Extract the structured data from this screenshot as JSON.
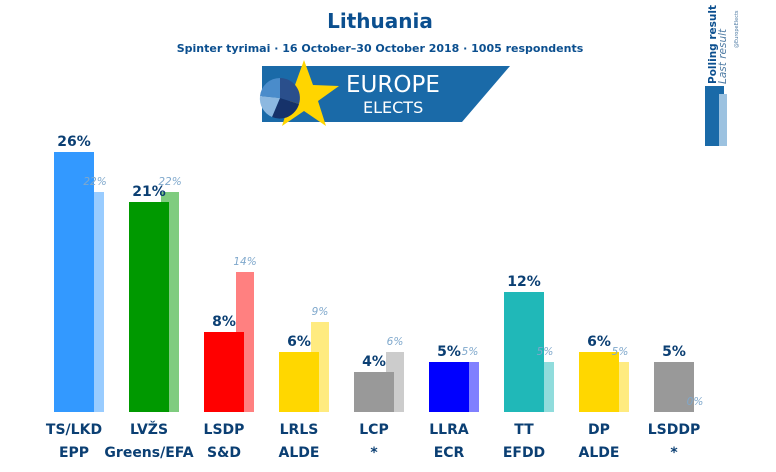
{
  "chart_data": {
    "type": "bar",
    "title": "Lithuania",
    "subtitle": "Spinter tyrimai · 16 October–30 October 2018 · 1005 respondents",
    "categories": [
      "TS/LKD",
      "LVŽS",
      "LSDP",
      "LRLS",
      "LCP",
      "LLRA",
      "TT",
      "DP",
      "LSDDP"
    ],
    "groups": [
      "EPP",
      "Greens/EFA",
      "S&D",
      "ALDE",
      "*",
      "ECR",
      "EFDD",
      "ALDE",
      "*"
    ],
    "series": [
      {
        "name": "Polling result",
        "values": [
          26,
          21,
          8,
          6,
          4,
          5,
          12,
          6,
          5
        ],
        "labels": [
          "26%",
          "21%",
          "8%",
          "6%",
          "4%",
          "5%",
          "12%",
          "6%",
          "5%"
        ]
      },
      {
        "name": "Last result",
        "values": [
          22,
          22,
          14,
          9,
          6,
          5,
          5,
          5,
          0
        ],
        "labels": [
          "22%",
          "22%",
          "14%",
          "9%",
          "6%",
          "5%",
          "5%",
          "5%",
          "0%"
        ]
      }
    ],
    "colors": [
      "#3399ff",
      "#009900",
      "#ff0000",
      "#ffd700",
      "#999999",
      "#0000ff",
      "#20b8b8",
      "#ffd700",
      "#999999"
    ],
    "prev_colors": [
      "#99ccff",
      "#7fcc7f",
      "#ff8080",
      "#ffeb80",
      "#cccccc",
      "#8080ff",
      "#90dcdc",
      "#ffeb80",
      "#cccccc"
    ],
    "ylim": [
      0,
      26
    ]
  },
  "logo": {
    "line1": "EUROPE",
    "line2": "ELECTS"
  },
  "legend": {
    "current": "Polling result",
    "last": "Last result",
    "note": "@EuropeElects"
  },
  "colors": {
    "accent": "#0b4f8f",
    "logo_bg": "#1a6aa8",
    "star": "#ffd500"
  }
}
